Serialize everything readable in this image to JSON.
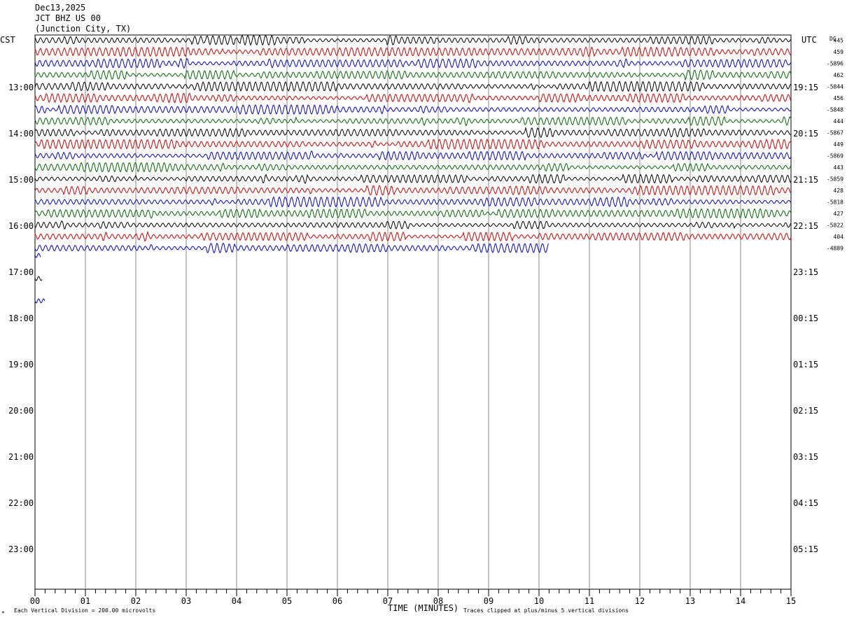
{
  "header": {
    "date": "Dec13,2025",
    "station": "JCT BHZ US 00",
    "location": "(Junction City, TX)"
  },
  "labels": {
    "left_zone": "CST",
    "right_zone": "UTC",
    "dc": "DC",
    "xaxis_title": "TIME (MINUTES)",
    "scale_note": "Each Vertical Division =  200.00 microvolts",
    "clip_note": "Traces clipped at plus/minus 5 vertical divisions",
    "corner_mark": "*"
  },
  "colors": {
    "trace_cycle": [
      "#000000",
      "#cc0000",
      "#0000cc",
      "#006600"
    ],
    "grid": "#888888"
  },
  "chart_data": {
    "type": "line",
    "title": "JCT BHZ US 00",
    "xlabel": "TIME (MINUTES)",
    "xlim": [
      0,
      15
    ],
    "x_tick_labels": [
      "00",
      "01",
      "02",
      "03",
      "04",
      "05",
      "06",
      "07",
      "08",
      "09",
      "10",
      "11",
      "12",
      "13",
      "14",
      "15"
    ],
    "left_time_labels": [
      "13:00",
      "14:00",
      "15:00",
      "16:00",
      "17:00",
      "18:00",
      "19:00",
      "20:00",
      "21:00",
      "22:00",
      "23:00"
    ],
    "right_time_labels": [
      "19:15",
      "20:15",
      "21:15",
      "22:15",
      "23:15",
      "00:15",
      "01:15",
      "02:15",
      "03:15",
      "04:15",
      "05:15"
    ],
    "dc_offsets": [
      "445",
      "459",
      "-5896",
      "462",
      "-5844",
      "456",
      "-5848",
      "444",
      "-5867",
      "449",
      "-5869",
      "443",
      "-5859",
      "428",
      "-5818",
      "427",
      "-5822",
      "404",
      "-4889"
    ],
    "trace_lines_full": 18,
    "last_trace_end_minute": 10.2,
    "grid": true
  }
}
